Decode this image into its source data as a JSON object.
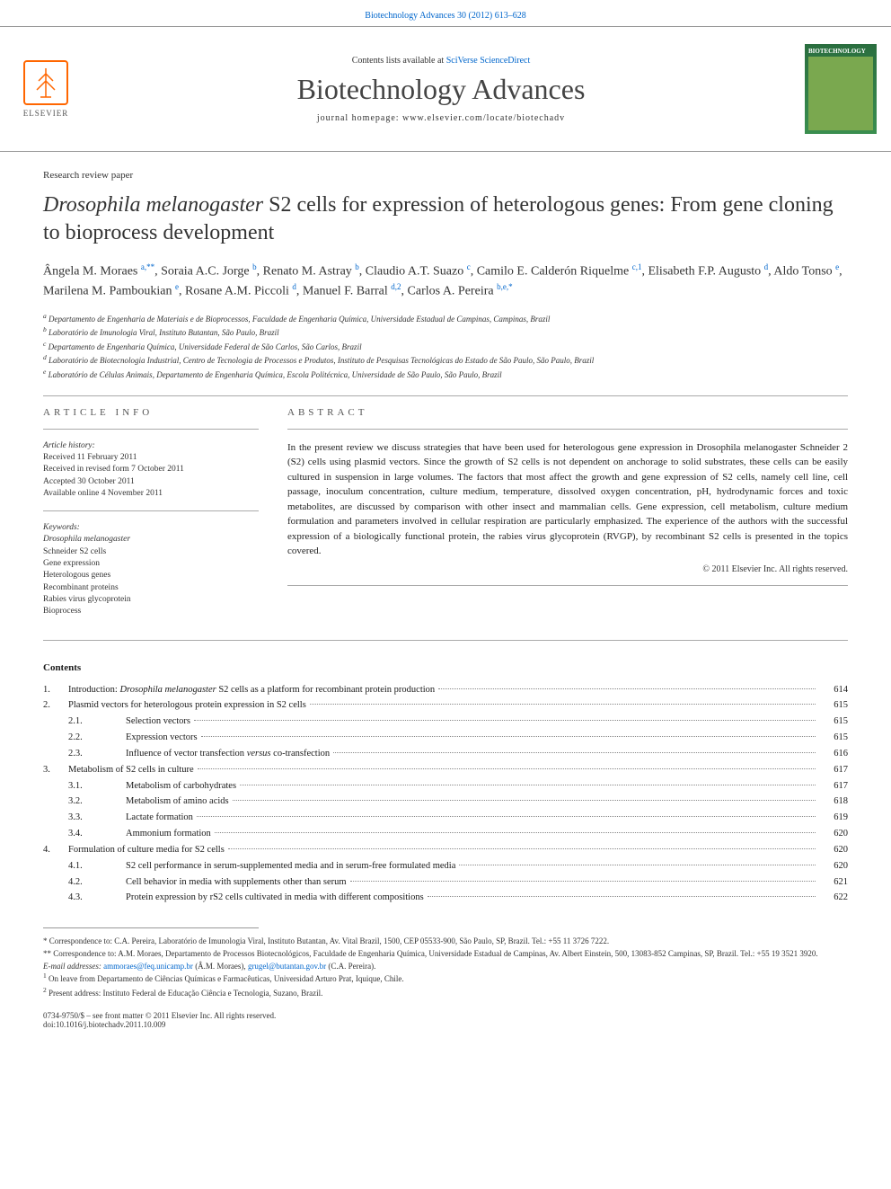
{
  "top_link": "Biotechnology Advances 30 (2012) 613–628",
  "header": {
    "contents_line_pre": "Contents lists available at ",
    "contents_link": "SciVerse ScienceDirect",
    "journal_name": "Biotechnology Advances",
    "homepage_label": "journal homepage: www.elsevier.com/locate/biotechadv",
    "elsevier": "ELSEVIER",
    "cover_label": "BIOTECHNOLOGY"
  },
  "paper_type": "Research review paper",
  "title_pre": "Drosophila melanogaster",
  "title_post": " S2 cells for expression of heterologous genes: From gene cloning to bioprocess development",
  "authors_html": "Ângela M. Moraes <sup>a,**</sup>, Soraia A.C. Jorge <sup>b</sup>, Renato M. Astray <sup>b</sup>, Claudio A.T. Suazo <sup>c</sup>, Camilo E. Calderón Riquelme <sup>c,1</sup>, Elisabeth F.P. Augusto <sup>d</sup>, Aldo Tonso <sup>e</sup>, Marilena M. Pamboukian <sup>e</sup>, Rosane A.M. Piccoli <sup>d</sup>, Manuel F. Barral <sup>d,2</sup>, Carlos A. Pereira <sup>b,e,*</sup>",
  "affiliations": [
    "a Departamento de Engenharia de Materiais e de Bioprocessos, Faculdade de Engenharia Química, Universidade Estadual de Campinas, Campinas, Brazil",
    "b Laboratório de Imunologia Viral, Instituto Butantan, São Paulo, Brazil",
    "c Departamento de Engenharia Química, Universidade Federal de São Carlos, São Carlos, Brazil",
    "d Laboratório de Biotecnologia Industrial, Centro de Tecnologia de Processos e Produtos, Instituto de Pesquisas Tecnológicas do Estado de São Paulo, São Paulo, Brazil",
    "e Laboratório de Células Animais, Departamento de Engenharia Química, Escola Politécnica, Universidade de São Paulo, São Paulo, Brazil"
  ],
  "article_info_label": "article info",
  "abstract_label": "abstract",
  "history": {
    "label": "Article history:",
    "received": "Received 11 February 2011",
    "revised": "Received in revised form 7 October 2011",
    "accepted": "Accepted 30 October 2011",
    "online": "Available online 4 November 2011"
  },
  "keywords_label": "Keywords:",
  "keywords": [
    "Drosophila melanogaster",
    "Schneider S2 cells",
    "Gene expression",
    "Heterologous genes",
    "Recombinant proteins",
    "Rabies virus glycoprotein",
    "Bioprocess"
  ],
  "abstract": "In the present review we discuss strategies that have been used for heterologous gene expression in Drosophila melanogaster Schneider 2 (S2) cells using plasmid vectors. Since the growth of S2 cells is not dependent on anchorage to solid substrates, these cells can be easily cultured in suspension in large volumes. The factors that most affect the growth and gene expression of S2 cells, namely cell line, cell passage, inoculum concentration, culture medium, temperature, dissolved oxygen concentration, pH, hydrodynamic forces and toxic metabolites, are discussed by comparison with other insect and mammalian cells. Gene expression, cell metabolism, culture medium formulation and parameters involved in cellular respiration are particularly emphasized. The experience of the authors with the successful expression of a biologically functional protein, the rabies virus glycoprotein (RVGP), by recombinant S2 cells is presented in the topics covered.",
  "copyright": "© 2011 Elsevier Inc. All rights reserved.",
  "contents_label": "Contents",
  "toc": [
    {
      "n": "1.",
      "t": "Introduction: Drosophila melanogaster S2 cells as a platform for recombinant protein production",
      "p": "614",
      "ital": "Drosophila melanogaster"
    },
    {
      "n": "2.",
      "t": "Plasmid vectors for heterologous protein expression in S2 cells",
      "p": "615"
    },
    {
      "n": "",
      "s": "2.1.",
      "t": "Selection vectors",
      "p": "615"
    },
    {
      "n": "",
      "s": "2.2.",
      "t": "Expression vectors",
      "p": "615"
    },
    {
      "n": "",
      "s": "2.3.",
      "t": "Influence of vector transfection versus co-transfection",
      "p": "616",
      "ital": "versus"
    },
    {
      "n": "3.",
      "t": "Metabolism of S2 cells in culture",
      "p": "617"
    },
    {
      "n": "",
      "s": "3.1.",
      "t": "Metabolism of carbohydrates",
      "p": "617"
    },
    {
      "n": "",
      "s": "3.2.",
      "t": "Metabolism of amino acids",
      "p": "618"
    },
    {
      "n": "",
      "s": "3.3.",
      "t": "Lactate formation",
      "p": "619"
    },
    {
      "n": "",
      "s": "3.4.",
      "t": "Ammonium formation",
      "p": "620"
    },
    {
      "n": "4.",
      "t": "Formulation of culture media for S2 cells",
      "p": "620"
    },
    {
      "n": "",
      "s": "4.1.",
      "t": "S2 cell performance in serum-supplemented media and in serum-free formulated media",
      "p": "620"
    },
    {
      "n": "",
      "s": "4.2.",
      "t": "Cell behavior in media with supplements other than serum",
      "p": "621"
    },
    {
      "n": "",
      "s": "4.3.",
      "t": "Protein expression by rS2 cells cultivated in media with different compositions",
      "p": "622"
    }
  ],
  "footnotes": [
    "* Correspondence to: C.A. Pereira, Laboratório de Imunologia Viral, Instituto Butantan, Av. Vital Brazil, 1500, CEP 05533-900, São Paulo, SP, Brazil. Tel.: +55 11 3726 7222.",
    "** Correspondence to: A.M. Moraes, Departamento de Processos Biotecnológicos, Faculdade de Engenharia Química, Universidade Estadual de Campinas, Av. Albert Einstein, 500, 13083-852 Campinas, SP, Brazil. Tel.: +55 19 3521 3920."
  ],
  "email_label": "E-mail addresses: ",
  "emails": [
    {
      "addr": "ammoraes@feq.unicamp.br",
      "who": " (Â.M. Moraes), "
    },
    {
      "addr": "grugel@butantan.gov.br",
      "who": " (C.A. Pereira)."
    }
  ],
  "footnotes2": [
    "1 On leave from Departamento de Ciências Químicas e Farmacêuticas, Universidad Arturo Prat, Iquique, Chile.",
    "2 Present address: Instituto Federal de Educação Ciência e Tecnologia, Suzano, Brazil."
  ],
  "doi": {
    "front_matter": "0734-9750/$ – see front matter © 2011 Elsevier Inc. All rights reserved.",
    "doi": "doi:10.1016/j.biotechadv.2011.10.009"
  },
  "colors": {
    "link": "#0066cc",
    "elsevier_orange": "#ff6600",
    "rule": "#999999",
    "cover_green1": "#2a6e3f",
    "cover_green2": "#7aa84f"
  }
}
